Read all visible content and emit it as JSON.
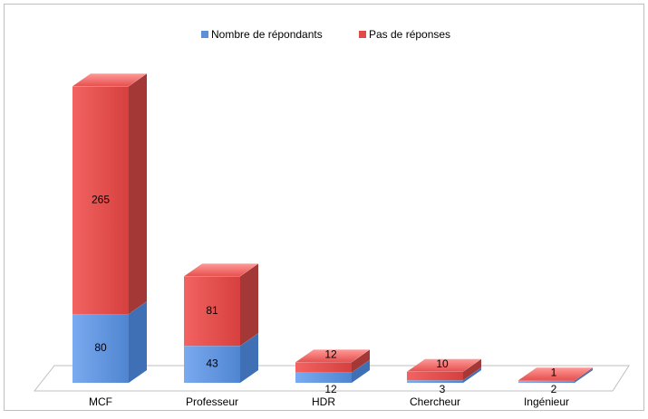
{
  "chart_data": {
    "type": "bar3d_stacked",
    "categories": [
      "MCF",
      "Professeur",
      "HDR",
      "Chercheur",
      "Ingénieur"
    ],
    "series": [
      {
        "name": "Nombre de répondants",
        "color": "#5b8fd6",
        "values": [
          80,
          43,
          12,
          3,
          2
        ]
      },
      {
        "name": "Pas de réponses",
        "color": "#e04a48",
        "values": [
          265,
          81,
          12,
          10,
          1
        ]
      }
    ],
    "legend": "top"
  }
}
